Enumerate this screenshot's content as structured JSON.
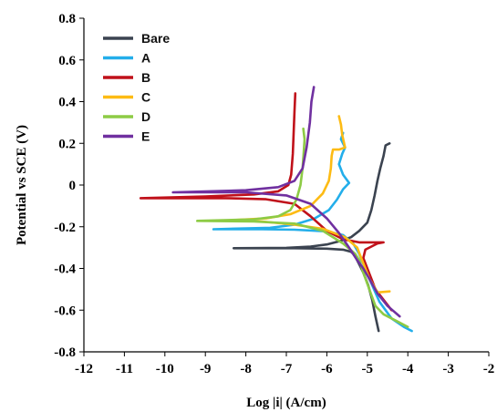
{
  "chart_data": {
    "type": "line",
    "xlabel": "Log |i| (A/cm)",
    "ylabel": "Potential vs SCE (V)",
    "xlim": [
      -12,
      -2
    ],
    "ylim": [
      -0.8,
      0.8
    ],
    "xticks": [
      -12,
      -11,
      -10,
      -9,
      -8,
      -7,
      -6,
      -5,
      -4,
      -3,
      -2
    ],
    "yticks": [
      -0.8,
      -0.6,
      -0.4,
      -0.2,
      0,
      0.2,
      0.4,
      0.6,
      0.8
    ],
    "ytick_labels": [
      "-0.8",
      "-0.6",
      "-0.4",
      "-0.2",
      "0",
      "0.2",
      "0.4",
      "0.6",
      "0.8"
    ],
    "grid": false,
    "legend_position": "top-left",
    "series": [
      {
        "name": "Bare",
        "color": "#3b4350",
        "points": [
          [
            -4.72,
            -0.7
          ],
          [
            -4.8,
            -0.63
          ],
          [
            -4.88,
            -0.55
          ],
          [
            -4.98,
            -0.48
          ],
          [
            -5.1,
            -0.42
          ],
          [
            -5.2,
            -0.38
          ],
          [
            -5.28,
            -0.35
          ],
          [
            -5.35,
            -0.33
          ],
          [
            -5.4,
            -0.32
          ],
          [
            -5.6,
            -0.31
          ],
          [
            -6.0,
            -0.305
          ],
          [
            -6.8,
            -0.303
          ],
          [
            -7.5,
            -0.303
          ],
          [
            -8.3,
            -0.303
          ],
          [
            -7.0,
            -0.301
          ],
          [
            -6.4,
            -0.295
          ],
          [
            -6.0,
            -0.285
          ],
          [
            -5.7,
            -0.27
          ],
          [
            -5.4,
            -0.25
          ],
          [
            -5.2,
            -0.22
          ],
          [
            -5.0,
            -0.18
          ],
          [
            -4.9,
            -0.12
          ],
          [
            -4.82,
            -0.05
          ],
          [
            -4.75,
            0.02
          ],
          [
            -4.68,
            0.08
          ],
          [
            -4.6,
            0.14
          ],
          [
            -4.55,
            0.19
          ],
          [
            -4.45,
            0.2
          ]
        ]
      },
      {
        "name": "A",
        "color": "#23aeea",
        "points": [
          [
            -3.9,
            -0.7
          ],
          [
            -4.1,
            -0.68
          ],
          [
            -4.4,
            -0.64
          ],
          [
            -4.7,
            -0.56
          ],
          [
            -4.95,
            -0.45
          ],
          [
            -5.1,
            -0.38
          ],
          [
            -5.2,
            -0.33
          ],
          [
            -5.35,
            -0.28
          ],
          [
            -5.6,
            -0.24
          ],
          [
            -6.0,
            -0.222
          ],
          [
            -6.8,
            -0.214
          ],
          [
            -7.6,
            -0.212
          ],
          [
            -8.8,
            -0.212
          ],
          [
            -7.4,
            -0.205
          ],
          [
            -6.8,
            -0.19
          ],
          [
            -6.3,
            -0.16
          ],
          [
            -5.95,
            -0.12
          ],
          [
            -5.75,
            -0.07
          ],
          [
            -5.6,
            -0.02
          ],
          [
            -5.5,
            0.0
          ],
          [
            -5.45,
            0.01
          ],
          [
            -5.6,
            0.05
          ],
          [
            -5.7,
            0.1
          ],
          [
            -5.62,
            0.15
          ],
          [
            -5.55,
            0.18
          ],
          [
            -5.65,
            0.22
          ],
          [
            -5.6,
            0.25
          ]
        ]
      },
      {
        "name": "B",
        "color": "#c0111a",
        "points": [
          [
            -4.4,
            -0.6
          ],
          [
            -4.8,
            -0.5
          ],
          [
            -5.0,
            -0.4
          ],
          [
            -5.1,
            -0.35
          ],
          [
            -5.05,
            -0.31
          ],
          [
            -4.75,
            -0.28
          ],
          [
            -4.6,
            -0.275
          ],
          [
            -5.2,
            -0.275
          ],
          [
            -5.6,
            -0.26
          ],
          [
            -6.0,
            -0.22
          ],
          [
            -6.4,
            -0.15
          ],
          [
            -6.8,
            -0.09
          ],
          [
            -7.5,
            -0.068
          ],
          [
            -8.5,
            -0.063
          ],
          [
            -10.6,
            -0.063
          ],
          [
            -9.0,
            -0.055
          ],
          [
            -7.8,
            -0.045
          ],
          [
            -7.2,
            -0.03
          ],
          [
            -6.95,
            0.0
          ],
          [
            -6.88,
            0.05
          ],
          [
            -6.84,
            0.15
          ],
          [
            -6.82,
            0.25
          ],
          [
            -6.8,
            0.35
          ],
          [
            -6.78,
            0.44
          ]
        ]
      },
      {
        "name": "C",
        "color": "#fdbb14",
        "points": [
          [
            -4.45,
            -0.51
          ],
          [
            -4.75,
            -0.515
          ],
          [
            -4.85,
            -0.48
          ],
          [
            -4.95,
            -0.45
          ],
          [
            -5.05,
            -0.4
          ],
          [
            -5.15,
            -0.35
          ],
          [
            -5.25,
            -0.3
          ],
          [
            -5.55,
            -0.25
          ],
          [
            -6.1,
            -0.21
          ],
          [
            -6.8,
            -0.19
          ],
          [
            -7.6,
            -0.175
          ],
          [
            -8.5,
            -0.17
          ],
          [
            -7.5,
            -0.16
          ],
          [
            -6.9,
            -0.14
          ],
          [
            -6.4,
            -0.1
          ],
          [
            -6.1,
            -0.04
          ],
          [
            -5.95,
            0.02
          ],
          [
            -5.9,
            0.08
          ],
          [
            -5.88,
            0.14
          ],
          [
            -5.85,
            0.17
          ],
          [
            -5.7,
            0.17
          ],
          [
            -5.55,
            0.18
          ],
          [
            -5.62,
            0.24
          ],
          [
            -5.65,
            0.29
          ],
          [
            -5.7,
            0.33
          ]
        ]
      },
      {
        "name": "D",
        "color": "#8dcb45",
        "points": [
          [
            -4.0,
            -0.68
          ],
          [
            -4.3,
            -0.65
          ],
          [
            -4.6,
            -0.62
          ],
          [
            -4.8,
            -0.58
          ],
          [
            -4.95,
            -0.5
          ],
          [
            -5.1,
            -0.42
          ],
          [
            -5.2,
            -0.36
          ],
          [
            -5.3,
            -0.33
          ],
          [
            -5.6,
            -0.28
          ],
          [
            -6.1,
            -0.22
          ],
          [
            -6.8,
            -0.185
          ],
          [
            -7.8,
            -0.175
          ],
          [
            -9.2,
            -0.172
          ],
          [
            -7.8,
            -0.165
          ],
          [
            -7.2,
            -0.15
          ],
          [
            -6.9,
            -0.12
          ],
          [
            -6.75,
            -0.07
          ],
          [
            -6.65,
            0.0
          ],
          [
            -6.6,
            0.08
          ],
          [
            -6.57,
            0.16
          ],
          [
            -6.55,
            0.22
          ],
          [
            -6.58,
            0.27
          ]
        ]
      },
      {
        "name": "E",
        "color": "#7030a0",
        "points": [
          [
            -4.2,
            -0.63
          ],
          [
            -4.5,
            -0.58
          ],
          [
            -4.75,
            -0.52
          ],
          [
            -4.95,
            -0.45
          ],
          [
            -5.1,
            -0.4
          ],
          [
            -5.25,
            -0.36
          ],
          [
            -5.45,
            -0.3
          ],
          [
            -5.7,
            -0.23
          ],
          [
            -6.0,
            -0.16
          ],
          [
            -6.4,
            -0.09
          ],
          [
            -7.0,
            -0.05
          ],
          [
            -8.0,
            -0.035
          ],
          [
            -9.8,
            -0.035
          ],
          [
            -8.0,
            -0.025
          ],
          [
            -7.2,
            -0.01
          ],
          [
            -6.8,
            0.02
          ],
          [
            -6.6,
            0.08
          ],
          [
            -6.5,
            0.18
          ],
          [
            -6.42,
            0.3
          ],
          [
            -6.38,
            0.4
          ],
          [
            -6.32,
            0.47
          ]
        ]
      }
    ]
  }
}
